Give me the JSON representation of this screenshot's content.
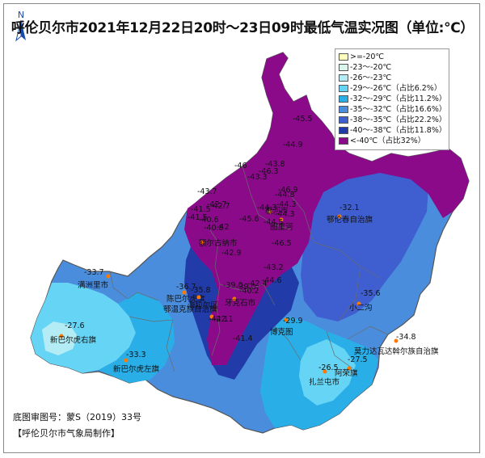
{
  "title": "呼伦贝尔市2021年12月22日20时～23日09时最低气温实况图（单位:℃）",
  "north_label": "N",
  "legend": [
    {
      "label": ">=-20℃",
      "color": "#ffffbe"
    },
    {
      "label": "-23～-20℃",
      "color": "#d9f5ec"
    },
    {
      "label": "-26～-23℃",
      "color": "#b3ecf5"
    },
    {
      "label": "-29～-26℃（占比6.2%）",
      "color": "#66d5f5"
    },
    {
      "label": "-32～-29℃（占比11.2%）",
      "color": "#2aaee8"
    },
    {
      "label": "-35～-32℃（占比16.6%）",
      "color": "#4b8ddd"
    },
    {
      "label": "-38～-35℃（占比22.2%）",
      "color": "#3f5fd1"
    },
    {
      "label": "-40～-38℃（占比11.8%）",
      "color": "#213ca8"
    },
    {
      "label": "<-40℃（占比32%）",
      "color": "#8a0a8a"
    }
  ],
  "stations": [
    {
      "name": "满洲里市",
      "temp": "-33.7"
    },
    {
      "name": "新巴尔虎右旗",
      "temp": "-27.6"
    },
    {
      "name": "新巴尔虎左旗",
      "temp": "-33.3"
    },
    {
      "name": "陈巴尔虎旗",
      "temp": "-36.7"
    },
    {
      "name": "海拉尔区",
      "temp": "-35.8"
    },
    {
      "name": "鄂温克族自治旗",
      "temp": "-42.1"
    },
    {
      "name": "牙克石市",
      "temp": "-39.0"
    },
    {
      "name": "额尔古纳市",
      "temp": "-41.5"
    },
    {
      "name": "根河市",
      "temp": "-44.3"
    },
    {
      "name": "图里河",
      "temp": "-44.3"
    },
    {
      "name": "鄂伦春自治旗",
      "temp": "-32.1"
    },
    {
      "name": "小二沟",
      "temp": "-35.6"
    },
    {
      "name": "博克图",
      "temp": "-29.9"
    },
    {
      "name": "莫力达瓦达斡尔族自治旗",
      "temp": "-34.8"
    },
    {
      "name": "扎兰屯市",
      "temp": "-26.5"
    },
    {
      "name": "阿荣旗",
      "temp": "-27.5"
    }
  ],
  "extra_values": [
    "-45.5",
    "-44.9",
    "-43.8",
    "-46",
    "-43.3",
    "-46.3",
    "-43.7",
    "-46.9",
    "-42.7",
    "-44.8",
    "-44.3",
    "-42.7",
    "-41.5",
    "-40.6",
    "-40.8",
    "-42",
    "-45.6",
    "-44.5",
    "-46.5",
    "-42.9",
    "-43.2",
    "-44.6",
    "-42.4",
    "-40.2",
    "-39.0",
    "-41.4",
    "-42.1"
  ],
  "footer": {
    "approval": "底图审图号：蒙S（2019）33号",
    "producer": "【呼伦贝尔市气象局制作】"
  }
}
